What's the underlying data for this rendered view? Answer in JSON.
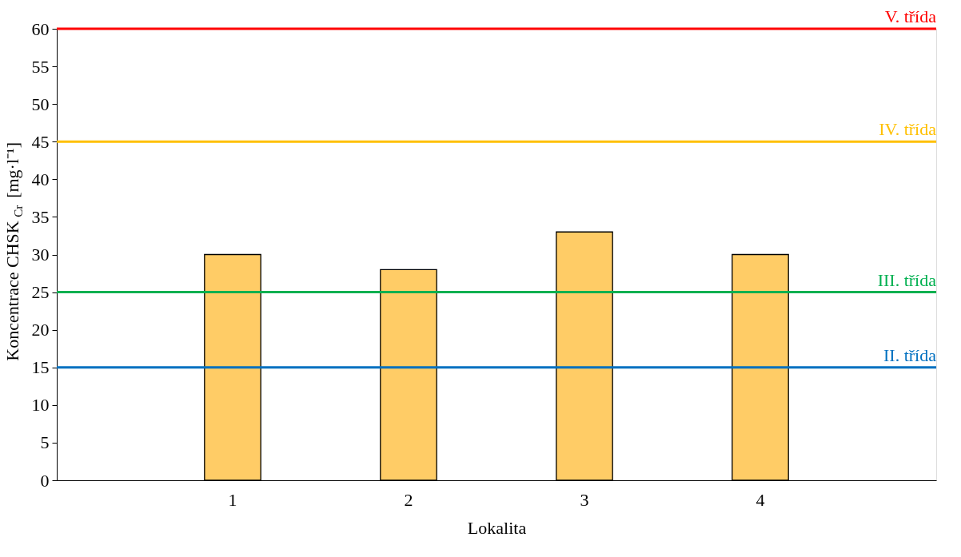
{
  "chart_data": {
    "type": "bar",
    "xlabel": "Lokalita",
    "ylabel": "Koncentrace CHSK$_{Cr}$ [mg·l⁻¹]",
    "categories": [
      "1",
      "2",
      "3",
      "4"
    ],
    "values": [
      30,
      28,
      33,
      30
    ],
    "color": "#ffcc66",
    "ylim": [
      0,
      60
    ],
    "yticks": [
      0,
      5,
      10,
      15,
      20,
      25,
      30,
      35,
      40,
      45,
      50,
      55,
      60
    ],
    "grid": false,
    "legend": false,
    "ref_lines": [
      {
        "axis": "y",
        "value": 60,
        "label": "V. třída",
        "color": "#ff0000"
      },
      {
        "axis": "y",
        "value": 45,
        "label": "IV. třída",
        "color": "#ffc000"
      },
      {
        "axis": "y",
        "value": 25,
        "label": "III. třída",
        "color": "#00b050"
      },
      {
        "axis": "y",
        "value": 15,
        "label": "II. třída",
        "color": "#0070c0"
      }
    ]
  }
}
